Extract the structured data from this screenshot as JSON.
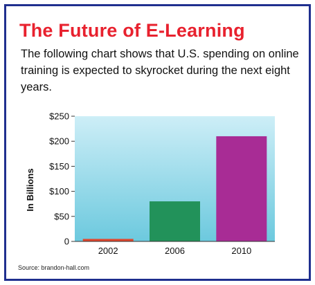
{
  "header": {
    "title": "The Future of E-Learning",
    "subtitle": "The following chart shows that U.S. spending on online training is expected to skyrocket during the next eight years."
  },
  "footer": {
    "source": "Source: brandon-hall.com"
  },
  "colors": {
    "frame": "#1f2f8f",
    "title": "#e8212e",
    "plot_top": "#cdeef7",
    "plot_bottom": "#6cc9de",
    "bar_2002": "#e2462c",
    "bar_2006": "#22925a",
    "bar_2010": "#a82c95"
  },
  "chart_data": {
    "type": "bar",
    "title": "",
    "xlabel": "",
    "ylabel": "In Billions",
    "categories": [
      "2002",
      "2006",
      "2010"
    ],
    "values": [
      5,
      80,
      210
    ],
    "ylim": [
      0,
      250
    ],
    "yticks": [
      0,
      50,
      100,
      150,
      200,
      250
    ],
    "ytick_labels": [
      "0",
      "$50",
      "$100",
      "$150",
      "$200",
      "$250"
    ],
    "grid": false,
    "legend": "none"
  }
}
